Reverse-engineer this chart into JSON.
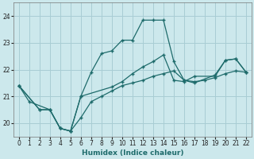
{
  "xlabel": "Humidex (Indice chaleur)",
  "bg_color": "#cce8ec",
  "grid_color": "#a8cdd4",
  "line_color": "#1e6b6b",
  "xlim": [
    -0.5,
    22.5
  ],
  "ylim": [
    19.5,
    24.5
  ],
  "yticks": [
    20,
    21,
    22,
    23,
    24
  ],
  "xticks": [
    0,
    1,
    2,
    3,
    4,
    5,
    6,
    7,
    8,
    9,
    10,
    11,
    12,
    13,
    14,
    15,
    16,
    17,
    18,
    19,
    20,
    21,
    22
  ],
  "series": [
    {
      "x": [
        0,
        1,
        3,
        4,
        5,
        6,
        7,
        8,
        9,
        10,
        11,
        12,
        13,
        14,
        15,
        16,
        17,
        19,
        20,
        21,
        22
      ],
      "y": [
        21.4,
        20.8,
        20.5,
        19.8,
        19.7,
        21.0,
        21.9,
        22.6,
        22.7,
        23.1,
        23.1,
        23.85,
        23.85,
        23.85,
        22.3,
        21.6,
        21.5,
        21.8,
        22.35,
        22.4,
        21.9
      ]
    },
    {
      "x": [
        0,
        2,
        3,
        4,
        5,
        6,
        7,
        8,
        9,
        10,
        11,
        12,
        13,
        14,
        15,
        16,
        17,
        18,
        19,
        20,
        21,
        22
      ],
      "y": [
        21.4,
        20.5,
        20.5,
        19.8,
        19.7,
        20.2,
        20.8,
        21.0,
        21.2,
        21.4,
        21.5,
        21.6,
        21.75,
        21.85,
        21.95,
        21.6,
        21.55,
        21.6,
        21.7,
        21.85,
        21.95,
        21.9
      ]
    },
    {
      "x": [
        0,
        2,
        3,
        4,
        5,
        6,
        9,
        10,
        11,
        12,
        13,
        14,
        15,
        16,
        17,
        19,
        20,
        21,
        22
      ],
      "y": [
        21.4,
        20.5,
        20.5,
        19.8,
        19.7,
        21.0,
        21.35,
        21.55,
        21.85,
        22.1,
        22.3,
        22.55,
        21.6,
        21.55,
        21.75,
        21.75,
        22.35,
        22.4,
        21.9
      ]
    }
  ]
}
